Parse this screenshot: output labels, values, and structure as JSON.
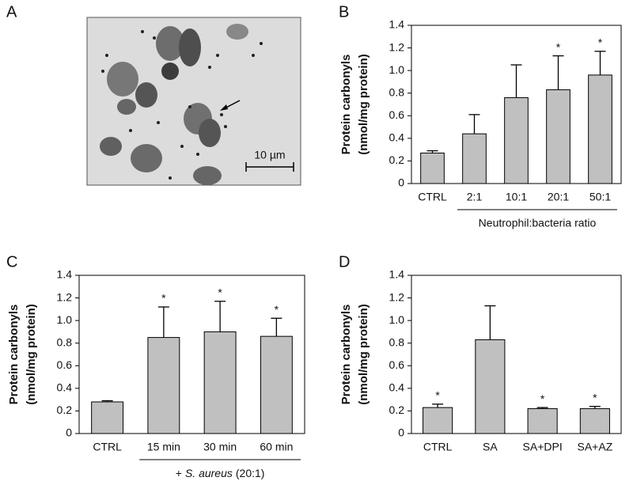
{
  "image_panel": {
    "panel": "A",
    "scale_bar": "10 µm"
  },
  "chart_data": [
    {
      "panel": "B",
      "type": "bar",
      "categories": [
        "CTRL",
        "2:1",
        "10:1",
        "20:1",
        "50:1"
      ],
      "values": [
        0.27,
        0.44,
        0.76,
        0.83,
        0.96
      ],
      "errors": [
        0.02,
        0.17,
        0.29,
        0.3,
        0.21
      ],
      "significance": [
        null,
        null,
        null,
        "*",
        "*"
      ],
      "ylabel": [
        "Protein carbonyls",
        "(nmol/mg protein)"
      ],
      "xlabel": {
        "text": "Neutrophil:bacteria ratio"
      },
      "ylim": [
        0,
        1.4
      ],
      "yticks": [
        0,
        0.2,
        0.4,
        0.6,
        0.8,
        {
          "value": 1,
          "label": "1.0"
        },
        1.2,
        1.4
      ],
      "color": "#c0c0c0"
    },
    {
      "panel": "C",
      "type": "bar",
      "categories": [
        "CTRL",
        "15 min",
        "30 min",
        "60 min"
      ],
      "values": [
        0.28,
        0.85,
        0.9,
        0.86
      ],
      "errors": [
        0.01,
        0.27,
        0.27,
        0.16
      ],
      "significance": [
        null,
        "*",
        "*",
        "*"
      ],
      "ylabel": [
        "Protein carbonyls",
        "(nmol/mg protein)"
      ],
      "xlabel": {
        "prefix": "+",
        "italic": "S. aureus",
        "suffix": "(20:1)"
      },
      "ylim": [
        0,
        1.4
      ],
      "yticks": [
        0,
        0.2,
        0.4,
        0.6,
        0.8,
        {
          "value": 1,
          "label": "1.0"
        },
        1.2,
        1.4
      ],
      "color": "#c0c0c0"
    },
    {
      "panel": "D",
      "type": "bar",
      "categories": [
        "CTRL",
        "SA",
        "SA+DPI",
        "SA+AZ"
      ],
      "values": [
        0.23,
        0.83,
        0.22,
        0.22
      ],
      "errors": [
        0.03,
        0.3,
        0.01,
        0.02
      ],
      "significance": [
        "*",
        null,
        "*",
        "*"
      ],
      "ylabel": [
        "Protein carbonyls",
        "(nmol/mg protein)"
      ],
      "ylim": [
        0,
        1.4
      ],
      "yticks": [
        0,
        0.2,
        0.4,
        0.6,
        0.8,
        {
          "value": 1,
          "label": "1.0"
        },
        1.2,
        1.4
      ],
      "color": "#c0c0c0"
    }
  ]
}
